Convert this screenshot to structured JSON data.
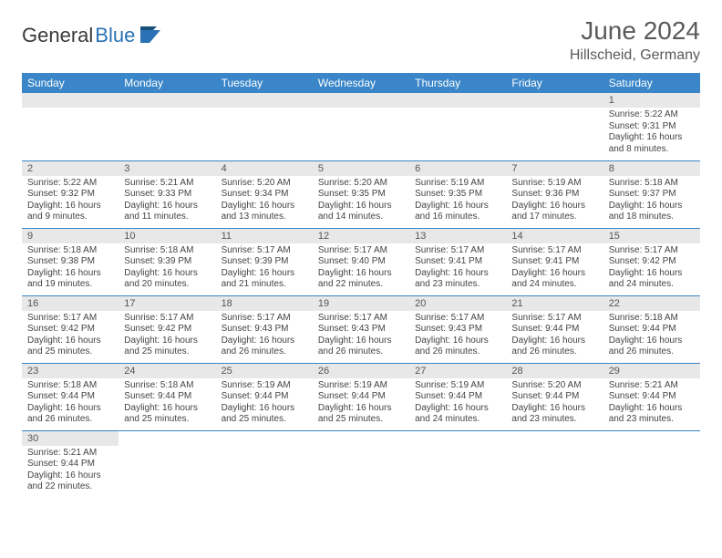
{
  "brand": {
    "part1": "General",
    "part2": "Blue"
  },
  "title": "June 2024",
  "location": "Hillscheid, Germany",
  "header_bg": "#3a86c8",
  "daynum_bg": "#e8e8e8",
  "border_color": "#3a86c8",
  "weekdays": [
    "Sunday",
    "Monday",
    "Tuesday",
    "Wednesday",
    "Thursday",
    "Friday",
    "Saturday"
  ],
  "weeks": [
    [
      null,
      null,
      null,
      null,
      null,
      null,
      {
        "n": "1",
        "sr": "5:22 AM",
        "ss": "9:31 PM",
        "dl": "16 hours and 8 minutes."
      }
    ],
    [
      {
        "n": "2",
        "sr": "5:22 AM",
        "ss": "9:32 PM",
        "dl": "16 hours and 9 minutes."
      },
      {
        "n": "3",
        "sr": "5:21 AM",
        "ss": "9:33 PM",
        "dl": "16 hours and 11 minutes."
      },
      {
        "n": "4",
        "sr": "5:20 AM",
        "ss": "9:34 PM",
        "dl": "16 hours and 13 minutes."
      },
      {
        "n": "5",
        "sr": "5:20 AM",
        "ss": "9:35 PM",
        "dl": "16 hours and 14 minutes."
      },
      {
        "n": "6",
        "sr": "5:19 AM",
        "ss": "9:35 PM",
        "dl": "16 hours and 16 minutes."
      },
      {
        "n": "7",
        "sr": "5:19 AM",
        "ss": "9:36 PM",
        "dl": "16 hours and 17 minutes."
      },
      {
        "n": "8",
        "sr": "5:18 AM",
        "ss": "9:37 PM",
        "dl": "16 hours and 18 minutes."
      }
    ],
    [
      {
        "n": "9",
        "sr": "5:18 AM",
        "ss": "9:38 PM",
        "dl": "16 hours and 19 minutes."
      },
      {
        "n": "10",
        "sr": "5:18 AM",
        "ss": "9:39 PM",
        "dl": "16 hours and 20 minutes."
      },
      {
        "n": "11",
        "sr": "5:17 AM",
        "ss": "9:39 PM",
        "dl": "16 hours and 21 minutes."
      },
      {
        "n": "12",
        "sr": "5:17 AM",
        "ss": "9:40 PM",
        "dl": "16 hours and 22 minutes."
      },
      {
        "n": "13",
        "sr": "5:17 AM",
        "ss": "9:41 PM",
        "dl": "16 hours and 23 minutes."
      },
      {
        "n": "14",
        "sr": "5:17 AM",
        "ss": "9:41 PM",
        "dl": "16 hours and 24 minutes."
      },
      {
        "n": "15",
        "sr": "5:17 AM",
        "ss": "9:42 PM",
        "dl": "16 hours and 24 minutes."
      }
    ],
    [
      {
        "n": "16",
        "sr": "5:17 AM",
        "ss": "9:42 PM",
        "dl": "16 hours and 25 minutes."
      },
      {
        "n": "17",
        "sr": "5:17 AM",
        "ss": "9:42 PM",
        "dl": "16 hours and 25 minutes."
      },
      {
        "n": "18",
        "sr": "5:17 AM",
        "ss": "9:43 PM",
        "dl": "16 hours and 26 minutes."
      },
      {
        "n": "19",
        "sr": "5:17 AM",
        "ss": "9:43 PM",
        "dl": "16 hours and 26 minutes."
      },
      {
        "n": "20",
        "sr": "5:17 AM",
        "ss": "9:43 PM",
        "dl": "16 hours and 26 minutes."
      },
      {
        "n": "21",
        "sr": "5:17 AM",
        "ss": "9:44 PM",
        "dl": "16 hours and 26 minutes."
      },
      {
        "n": "22",
        "sr": "5:18 AM",
        "ss": "9:44 PM",
        "dl": "16 hours and 26 minutes."
      }
    ],
    [
      {
        "n": "23",
        "sr": "5:18 AM",
        "ss": "9:44 PM",
        "dl": "16 hours and 26 minutes."
      },
      {
        "n": "24",
        "sr": "5:18 AM",
        "ss": "9:44 PM",
        "dl": "16 hours and 25 minutes."
      },
      {
        "n": "25",
        "sr": "5:19 AM",
        "ss": "9:44 PM",
        "dl": "16 hours and 25 minutes."
      },
      {
        "n": "26",
        "sr": "5:19 AM",
        "ss": "9:44 PM",
        "dl": "16 hours and 25 minutes."
      },
      {
        "n": "27",
        "sr": "5:19 AM",
        "ss": "9:44 PM",
        "dl": "16 hours and 24 minutes."
      },
      {
        "n": "28",
        "sr": "5:20 AM",
        "ss": "9:44 PM",
        "dl": "16 hours and 23 minutes."
      },
      {
        "n": "29",
        "sr": "5:21 AM",
        "ss": "9:44 PM",
        "dl": "16 hours and 23 minutes."
      }
    ],
    [
      {
        "n": "30",
        "sr": "5:21 AM",
        "ss": "9:44 PM",
        "dl": "16 hours and 22 minutes."
      },
      null,
      null,
      null,
      null,
      null,
      null
    ]
  ],
  "labels": {
    "sunrise": "Sunrise:",
    "sunset": "Sunset:",
    "daylight": "Daylight:"
  }
}
